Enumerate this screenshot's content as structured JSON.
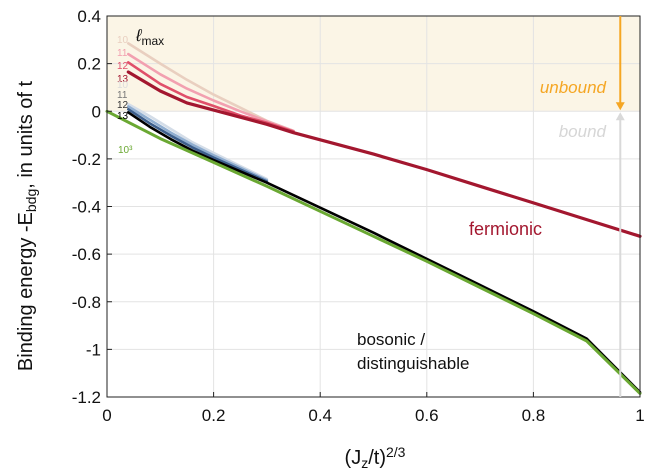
{
  "chart_data": {
    "type": "line",
    "xlabel": "(Jz/t)2/3",
    "ylabel": "Binding energy -Ebdg, in units of t",
    "xlim": [
      0,
      1
    ],
    "ylim": [
      -1.2,
      0.4
    ],
    "x_ticks": [
      "0",
      "0.2",
      "0.4",
      "0.6",
      "0.8",
      "1"
    ],
    "y_ticks": [
      "0.4",
      "0.2",
      "0",
      "-0.2",
      "-0.4",
      "-0.6",
      "-0.8",
      "-1",
      "-1.2"
    ],
    "grid": true,
    "shaded_region": {
      "y_from": 0,
      "y_to": 0.4,
      "color": "#fbf5e6"
    },
    "annotations": {
      "lmax": "ℓmax",
      "unbound": "unbound",
      "bound": "bound",
      "fermionic": "fermionic",
      "bosonic_line1": "bosonic /",
      "bosonic_line2": "distinguishable",
      "fermionic_lmax_labels": [
        "10",
        "11",
        "12",
        "13"
      ],
      "bosonic_lmax_labels": [
        "10",
        "11",
        "12",
        "13"
      ],
      "bosonic_extrap_label": "10³"
    },
    "arrows": {
      "x": 0.963,
      "unbound_color": "#f5a623",
      "bound_color": "#d9d9d9"
    },
    "colors": {
      "fermionic": "#a3172f",
      "bosonic": "#000000",
      "green": "#6aa832",
      "unbound_text": "#f5a623",
      "bound_text": "#d6d6d6"
    },
    "series": [
      {
        "group": "fermionic",
        "label": "10",
        "color": "#e9cfc0",
        "x": [
          0.04,
          0.1,
          0.15,
          0.2,
          0.25,
          0.3,
          0.35
        ],
        "y": [
          0.285,
          0.2,
          0.132,
          0.07,
          0.015,
          -0.04,
          -0.082
        ]
      },
      {
        "group": "fermionic",
        "label": "11",
        "color": "#f2a0b0",
        "x": [
          0.04,
          0.1,
          0.15,
          0.2,
          0.25,
          0.3,
          0.35
        ],
        "y": [
          0.24,
          0.155,
          0.095,
          0.045,
          0.0,
          -0.042,
          -0.083
        ]
      },
      {
        "group": "fermionic",
        "label": "12",
        "color": "#e0506a",
        "x": [
          0.04,
          0.1,
          0.15,
          0.2,
          0.25,
          0.3,
          0.35
        ],
        "y": [
          0.205,
          0.115,
          0.06,
          0.022,
          -0.018,
          -0.048,
          -0.085
        ]
      },
      {
        "group": "fermionic",
        "label": "13",
        "color": "#a3172f",
        "x": [
          0.04,
          0.1,
          0.15,
          0.2,
          0.25,
          0.3,
          0.35,
          0.4,
          0.5,
          0.6,
          0.7,
          0.8,
          0.9,
          1.0
        ],
        "y": [
          0.165,
          0.085,
          0.035,
          0.005,
          -0.025,
          -0.055,
          -0.09,
          -0.12,
          -0.18,
          -0.245,
          -0.315,
          -0.385,
          -0.455,
          -0.525
        ]
      },
      {
        "group": "bosonic",
        "label": "10",
        "color": "#d4dde8",
        "x": [
          0.04,
          0.08,
          0.12,
          0.16,
          0.2,
          0.25,
          0.3
        ],
        "y": [
          0.03,
          -0.02,
          -0.075,
          -0.13,
          -0.175,
          -0.23,
          -0.285
        ]
      },
      {
        "group": "bosonic",
        "label": "11",
        "color": "#90aed0",
        "x": [
          0.04,
          0.08,
          0.12,
          0.16,
          0.2,
          0.25,
          0.3
        ],
        "y": [
          0.02,
          -0.035,
          -0.09,
          -0.14,
          -0.185,
          -0.237,
          -0.29
        ]
      },
      {
        "group": "bosonic",
        "label": "12",
        "color": "#3d5f8c",
        "x": [
          0.04,
          0.08,
          0.12,
          0.16,
          0.2,
          0.25,
          0.3
        ],
        "y": [
          0.008,
          -0.05,
          -0.103,
          -0.152,
          -0.195,
          -0.245,
          -0.295
        ]
      },
      {
        "group": "bosonic",
        "label": "13",
        "color": "#000000",
        "x": [
          0.04,
          0.08,
          0.12,
          0.16,
          0.2,
          0.3,
          0.4,
          0.5,
          0.6,
          0.7,
          0.8,
          0.9,
          1.0
        ],
        "y": [
          -0.005,
          -0.065,
          -0.118,
          -0.165,
          -0.205,
          -0.3,
          -0.405,
          -0.51,
          -0.62,
          -0.73,
          -0.84,
          -0.955,
          -1.18
        ]
      },
      {
        "group": "extrapolated",
        "label": "10³",
        "color": "#6aa832",
        "x": [
          0,
          0.1,
          0.2,
          0.3,
          0.4,
          0.5,
          0.6,
          0.7,
          0.8,
          0.9,
          1.0
        ],
        "y": [
          0.0,
          -0.115,
          -0.215,
          -0.315,
          -0.42,
          -0.525,
          -0.63,
          -0.74,
          -0.85,
          -0.965,
          -1.185
        ]
      }
    ]
  }
}
